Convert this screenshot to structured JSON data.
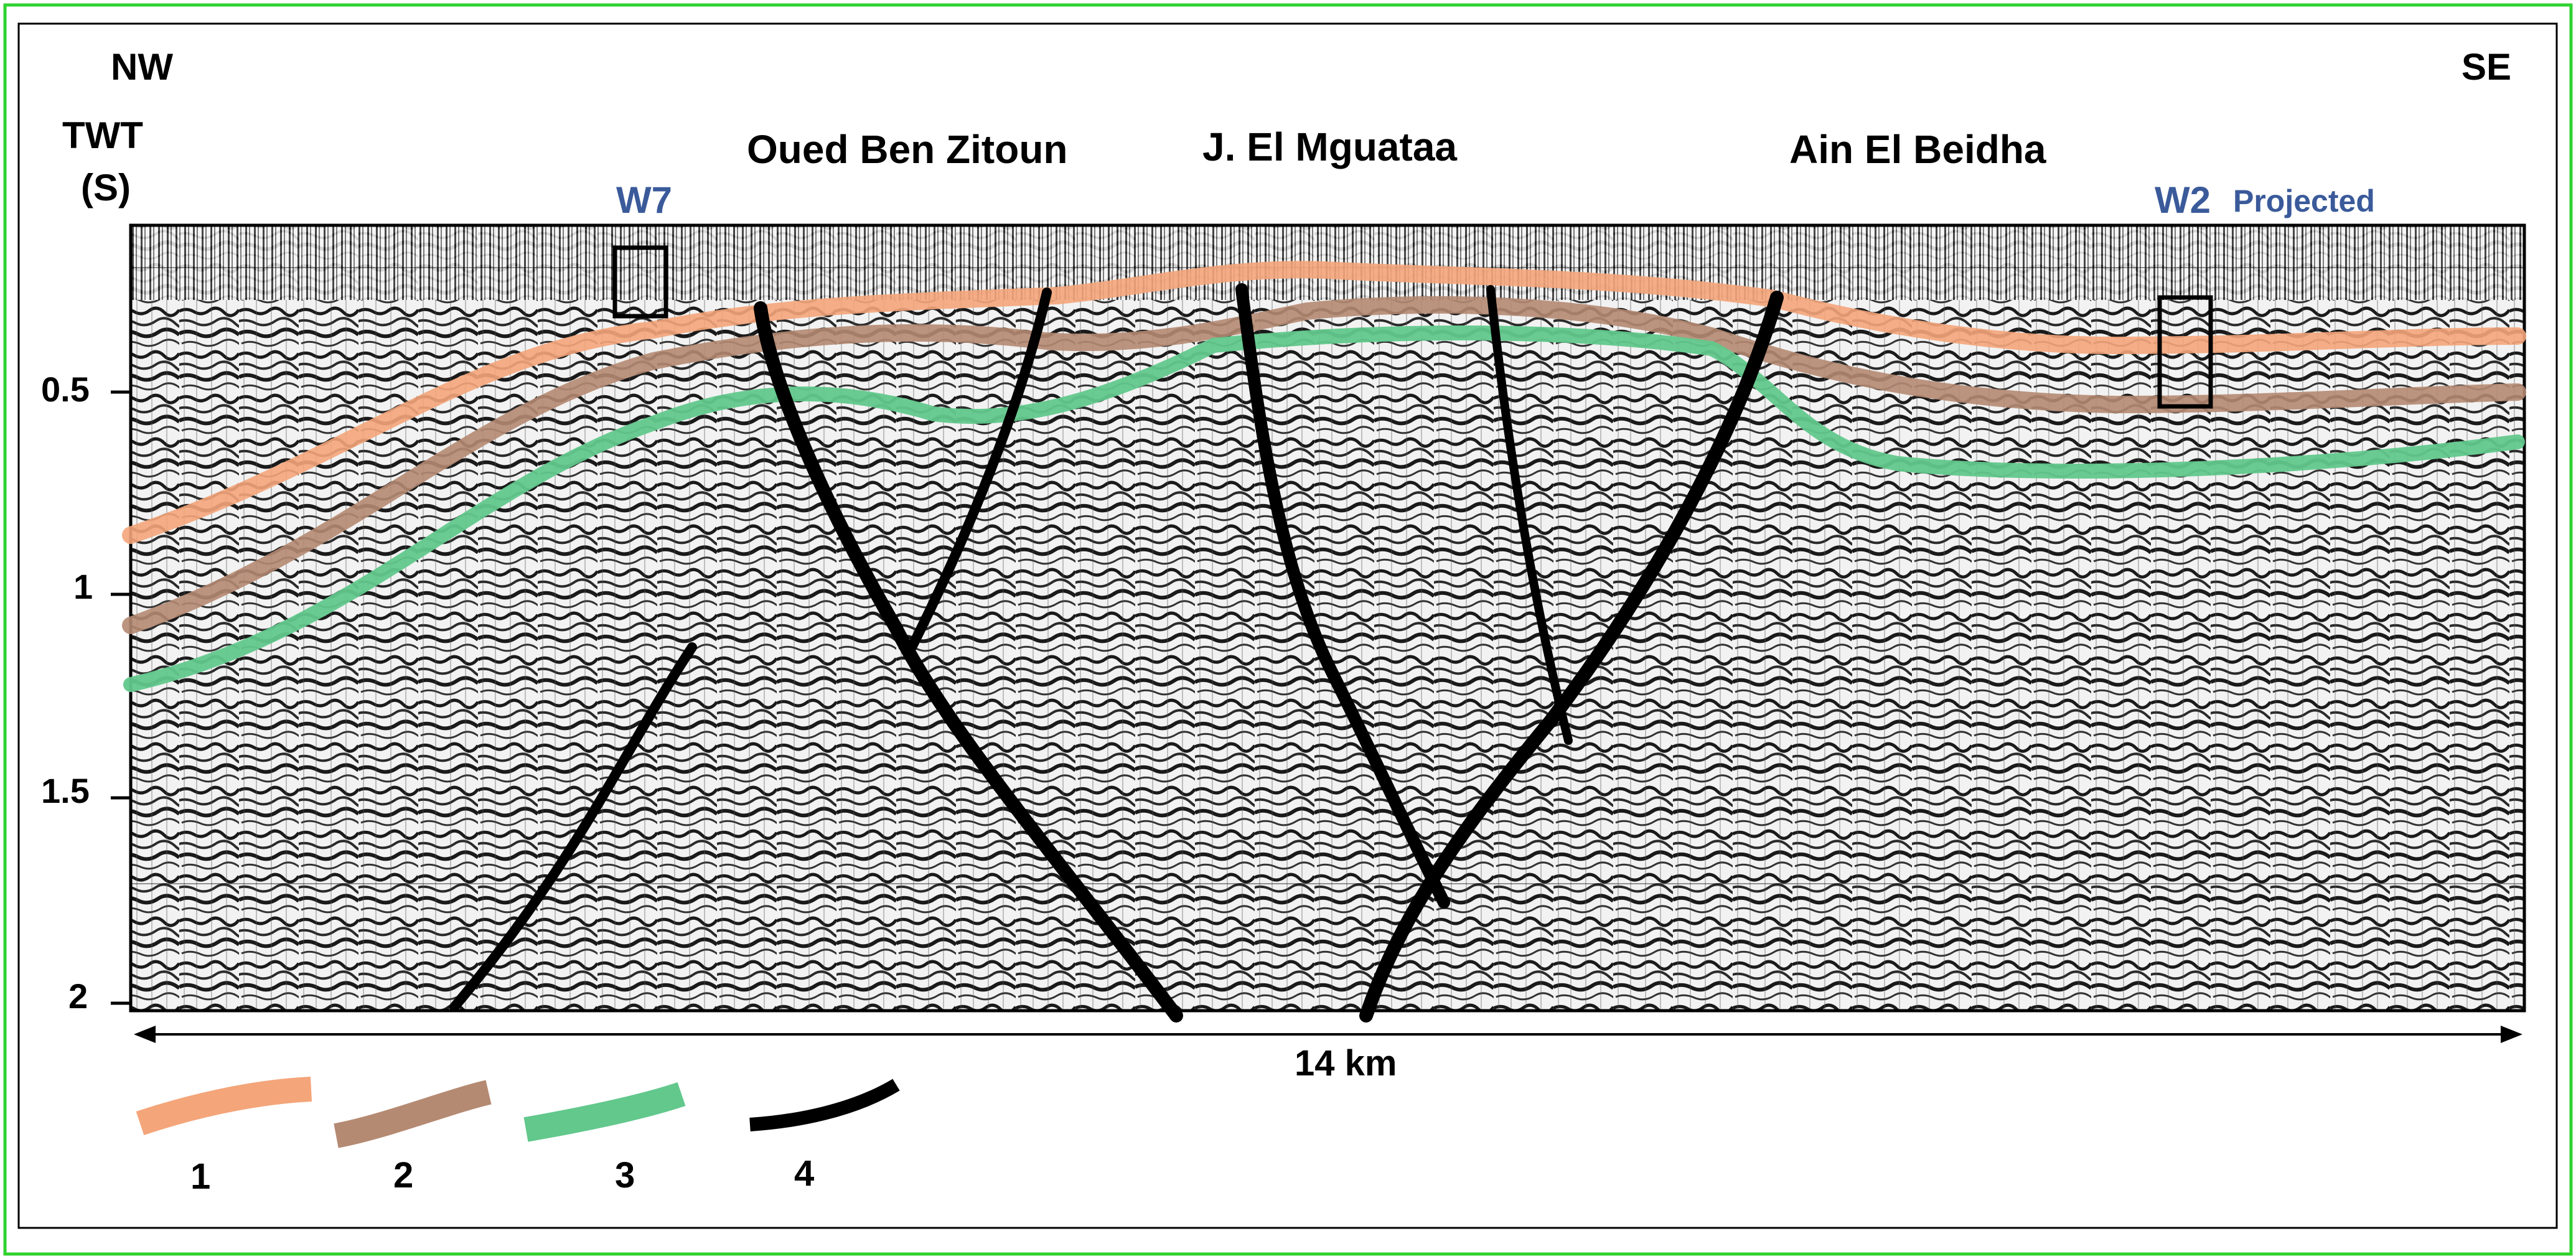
{
  "orientation": {
    "left": "NW",
    "right": "SE"
  },
  "axis": {
    "label_line1": "TWT",
    "label_line2": "(S)",
    "ticks": [
      "0.5",
      "1",
      "1.5",
      "2"
    ]
  },
  "localities": [
    "Oued Ben Zitoun",
    "J. El Mguataa",
    "Ain El Beidha"
  ],
  "wells": {
    "w7": {
      "label": "W7"
    },
    "w2": {
      "label": "W2",
      "note": "Projected"
    }
  },
  "scale": {
    "label": "14 km"
  },
  "legend": {
    "items": [
      {
        "number": "1",
        "color": "#f4a57a"
      },
      {
        "number": "2",
        "color": "#b58a72"
      },
      {
        "number": "3",
        "color": "#62c88c"
      },
      {
        "number": "4",
        "color": "#000000"
      }
    ]
  },
  "colors": {
    "frame_border": "#2fd22f",
    "well_label": "#3a5a9a",
    "horizon_1": "#f4a57a",
    "horizon_2": "#b58a72",
    "horizon_3": "#62c88c",
    "fault": "#000000"
  }
}
